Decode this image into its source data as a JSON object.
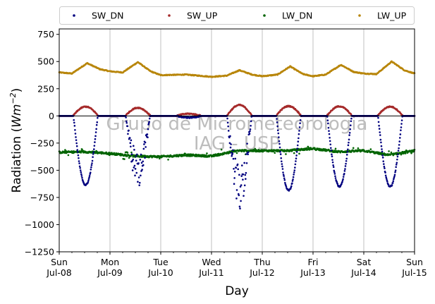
{
  "chart_data": {
    "type": "scatter",
    "xlabel": "Day",
    "ylabel": "Radiation (Wm⁻²)",
    "ylabel_parts": [
      "Radiation (",
      "Wm",
      "−2",
      ")"
    ],
    "xlim": [
      0,
      7
    ],
    "ylim": [
      -1250,
      800
    ],
    "yticks": [
      750,
      500,
      250,
      0,
      -250,
      -500,
      -750,
      -1000,
      -1250
    ],
    "ytick_labels": [
      "750",
      "500",
      "250",
      "0",
      "−250",
      "−500",
      "−750",
      "−1000",
      "−1250"
    ],
    "xtick_labels": [
      [
        "Sun",
        "Jul-08"
      ],
      [
        "Mon",
        "Jul-09"
      ],
      [
        "Tue",
        "Jul-10"
      ],
      [
        "Wed",
        "Jul-11"
      ],
      [
        "Thu",
        "Jul-12"
      ],
      [
        "Fri",
        "Jul-13"
      ],
      [
        "Sat",
        "Jul-14"
      ],
      [
        "Sun",
        "Jul-15"
      ]
    ],
    "grid": "vertical",
    "legend_position": "top",
    "watermark": [
      "Grupo de Micrometeorologia",
      "IAG - USP"
    ],
    "series": [
      {
        "name": "SW_DN",
        "color": "#00007f",
        "description": "daytime negative minima per day",
        "daily_min": [
          -635,
          -600,
          -15,
          -790,
          -685,
          -650,
          -650
        ],
        "noon": [
          0.52,
          1.55,
          2.55,
          3.55,
          4.52,
          5.52,
          6.52
        ]
      },
      {
        "name": "SW_UP",
        "color": "#a52a2a",
        "daily_max": [
          85,
          75,
          20,
          100,
          90,
          88,
          85
        ],
        "noon": [
          0.52,
          1.55,
          2.55,
          3.55,
          4.52,
          5.52,
          6.52
        ]
      },
      {
        "name": "LW_DN",
        "color": "#006400",
        "x": [
          0,
          0.5,
          1,
          1.5,
          2,
          2.5,
          3,
          3.5,
          4,
          4.5,
          5,
          5.5,
          6,
          6.5,
          7
        ],
        "y": [
          -335,
          -330,
          -345,
          -370,
          -375,
          -360,
          -370,
          -320,
          -320,
          -320,
          -300,
          -330,
          -320,
          -360,
          -320
        ]
      },
      {
        "name": "LW_UP",
        "color": "#b8860b",
        "x": [
          0,
          0.25,
          0.55,
          0.8,
          1,
          1.25,
          1.55,
          1.8,
          2,
          2.5,
          3,
          3.3,
          3.55,
          3.8,
          4,
          4.3,
          4.55,
          4.8,
          5,
          5.25,
          5.55,
          5.8,
          6,
          6.25,
          6.55,
          6.8,
          7
        ],
        "y": [
          400,
          390,
          485,
          430,
          410,
          400,
          495,
          410,
          375,
          380,
          360,
          370,
          420,
          380,
          365,
          380,
          455,
          385,
          365,
          380,
          470,
          405,
          390,
          385,
          500,
          420,
          390
        ]
      }
    ]
  }
}
